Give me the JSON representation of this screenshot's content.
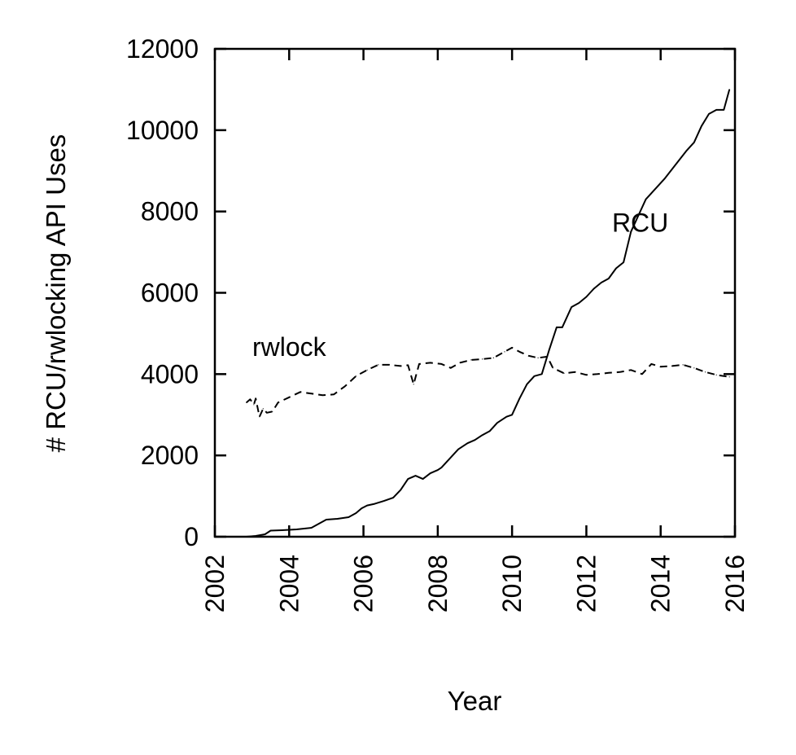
{
  "chart_data": {
    "type": "line",
    "title": "",
    "xlabel": "Year",
    "ylabel": "# RCU/rwlocking API Uses",
    "xlim": [
      2002,
      2016
    ],
    "ylim": [
      0,
      12000
    ],
    "x_ticks": [
      "2002",
      "2004",
      "2006",
      "2008",
      "2010",
      "2012",
      "2014",
      "2016"
    ],
    "y_ticks": [
      "0",
      "2000",
      "4000",
      "6000",
      "8000",
      "10000",
      "12000"
    ],
    "grid": false,
    "legend": "none (series labeled directly on plot)",
    "line_color": "#000000",
    "series": [
      {
        "name": "RCU",
        "style": "solid",
        "points": [
          [
            2002.85,
            0
          ],
          [
            2003.1,
            20
          ],
          [
            2003.35,
            60
          ],
          [
            2003.5,
            150
          ],
          [
            2003.8,
            160
          ],
          [
            2004.2,
            180
          ],
          [
            2004.6,
            220
          ],
          [
            2004.8,
            320
          ],
          [
            2005.0,
            420
          ],
          [
            2005.3,
            440
          ],
          [
            2005.6,
            480
          ],
          [
            2005.8,
            580
          ],
          [
            2005.95,
            700
          ],
          [
            2006.1,
            770
          ],
          [
            2006.3,
            810
          ],
          [
            2006.55,
            880
          ],
          [
            2006.8,
            960
          ],
          [
            2007.0,
            1150
          ],
          [
            2007.2,
            1420
          ],
          [
            2007.4,
            1500
          ],
          [
            2007.6,
            1420
          ],
          [
            2007.8,
            1560
          ],
          [
            2008.0,
            1640
          ],
          [
            2008.1,
            1700
          ],
          [
            2008.3,
            1900
          ],
          [
            2008.55,
            2150
          ],
          [
            2008.8,
            2300
          ],
          [
            2009.0,
            2380
          ],
          [
            2009.2,
            2500
          ],
          [
            2009.4,
            2600
          ],
          [
            2009.6,
            2800
          ],
          [
            2009.85,
            2950
          ],
          [
            2010.0,
            3000
          ],
          [
            2010.2,
            3400
          ],
          [
            2010.4,
            3750
          ],
          [
            2010.6,
            3950
          ],
          [
            2010.8,
            4000
          ],
          [
            2011.0,
            4600
          ],
          [
            2011.2,
            5150
          ],
          [
            2011.35,
            5150
          ],
          [
            2011.6,
            5650
          ],
          [
            2011.8,
            5750
          ],
          [
            2012.0,
            5900
          ],
          [
            2012.2,
            6100
          ],
          [
            2012.4,
            6250
          ],
          [
            2012.6,
            6350
          ],
          [
            2012.8,
            6600
          ],
          [
            2013.0,
            6750
          ],
          [
            2013.2,
            7500
          ],
          [
            2013.4,
            7900
          ],
          [
            2013.6,
            8300
          ],
          [
            2013.85,
            8550
          ],
          [
            2014.1,
            8800
          ],
          [
            2014.4,
            9150
          ],
          [
            2014.7,
            9500
          ],
          [
            2014.9,
            9700
          ],
          [
            2015.1,
            10100
          ],
          [
            2015.3,
            10400
          ],
          [
            2015.5,
            10500
          ],
          [
            2015.7,
            10500
          ],
          [
            2015.85,
            11000
          ]
        ]
      },
      {
        "name": "rwlock",
        "style": "dashed",
        "points": [
          [
            2002.85,
            3300
          ],
          [
            2002.95,
            3380
          ],
          [
            2003.05,
            3250
          ],
          [
            2003.1,
            3400
          ],
          [
            2003.2,
            2950
          ],
          [
            2003.3,
            3150
          ],
          [
            2003.4,
            3050
          ],
          [
            2003.55,
            3080
          ],
          [
            2003.7,
            3300
          ],
          [
            2004.0,
            3430
          ],
          [
            2004.3,
            3560
          ],
          [
            2004.6,
            3520
          ],
          [
            2004.9,
            3480
          ],
          [
            2005.2,
            3500
          ],
          [
            2005.5,
            3700
          ],
          [
            2005.8,
            3950
          ],
          [
            2006.1,
            4100
          ],
          [
            2006.4,
            4230
          ],
          [
            2006.7,
            4230
          ],
          [
            2007.0,
            4200
          ],
          [
            2007.2,
            4220
          ],
          [
            2007.35,
            3750
          ],
          [
            2007.5,
            4250
          ],
          [
            2007.8,
            4280
          ],
          [
            2008.1,
            4250
          ],
          [
            2008.35,
            4150
          ],
          [
            2008.6,
            4280
          ],
          [
            2008.9,
            4350
          ],
          [
            2009.2,
            4370
          ],
          [
            2009.5,
            4400
          ],
          [
            2009.8,
            4550
          ],
          [
            2010.0,
            4650
          ],
          [
            2010.2,
            4550
          ],
          [
            2010.45,
            4450
          ],
          [
            2010.7,
            4400
          ],
          [
            2010.95,
            4430
          ],
          [
            2011.1,
            4150
          ],
          [
            2011.4,
            4020
          ],
          [
            2011.7,
            4050
          ],
          [
            2012.0,
            3980
          ],
          [
            2012.3,
            4000
          ],
          [
            2012.6,
            4030
          ],
          [
            2012.9,
            4050
          ],
          [
            2013.2,
            4100
          ],
          [
            2013.5,
            4000
          ],
          [
            2013.75,
            4250
          ],
          [
            2014.0,
            4180
          ],
          [
            2014.3,
            4200
          ],
          [
            2014.6,
            4230
          ],
          [
            2014.9,
            4150
          ],
          [
            2015.2,
            4050
          ],
          [
            2015.5,
            3980
          ],
          [
            2015.85,
            3930
          ]
        ]
      }
    ],
    "annotations": [
      {
        "text": "RCU",
        "x": 2013.45,
        "y": 7500
      },
      {
        "text": "rwlock",
        "x": 2004.0,
        "y": 4450
      }
    ]
  }
}
